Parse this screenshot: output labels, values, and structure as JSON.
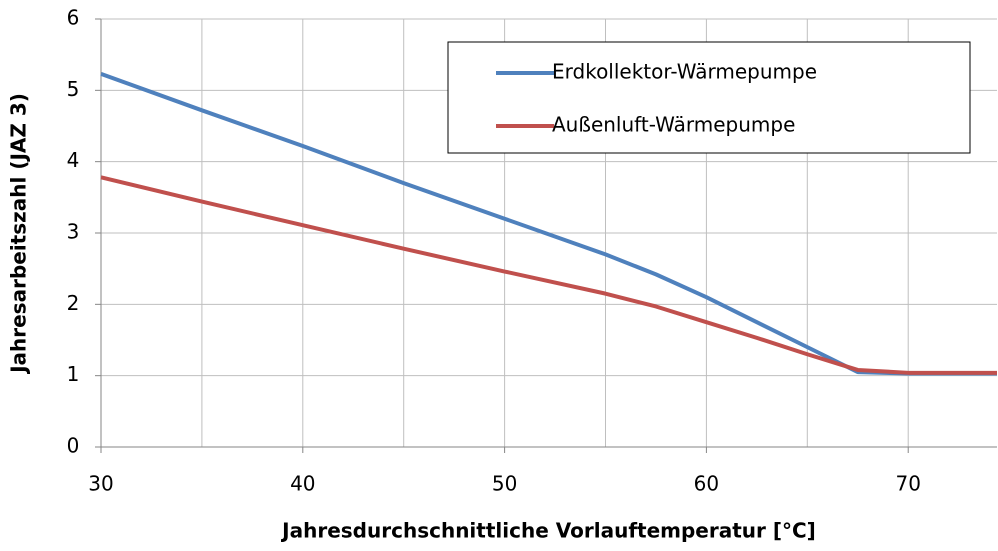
{
  "chart_data": {
    "type": "line",
    "x_label": "Jahresdurchschnittliche Vorlauftemperatur [°C]",
    "y_label": "Jahresarbeitszahl (JAZ 3)",
    "x": [
      30,
      35,
      40,
      45,
      50,
      55,
      57.5,
      60,
      62.5,
      65,
      67.5,
      70,
      74.4
    ],
    "series": [
      {
        "name": "Erdkollektor-Wärmepumpe",
        "color": "#4f81bd",
        "values": [
          5.23,
          4.72,
          4.22,
          3.7,
          3.2,
          2.7,
          2.42,
          2.1,
          1.75,
          1.4,
          1.05,
          1.03,
          1.03
        ]
      },
      {
        "name": "Außenluft-Wärmepumpe",
        "color": "#c0504d",
        "values": [
          3.78,
          3.44,
          3.11,
          2.78,
          2.46,
          2.15,
          1.97,
          1.75,
          1.53,
          1.3,
          1.08,
          1.04,
          1.04
        ]
      }
    ],
    "xlim": [
      30,
      74.4
    ],
    "xticks": [
      30,
      40,
      50,
      60,
      70
    ],
    "xminor": [
      35,
      45,
      55,
      65
    ],
    "ylim": [
      0,
      6
    ],
    "yticks": [
      0,
      1,
      2,
      3,
      4,
      5,
      6
    ],
    "grid": true,
    "legend": "upper right"
  }
}
